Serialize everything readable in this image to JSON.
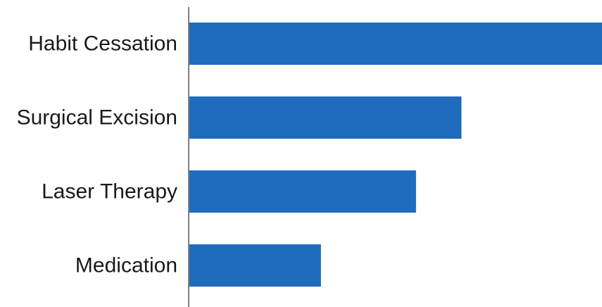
{
  "chart_data": {
    "type": "bar",
    "orientation": "horizontal",
    "categories": [
      "Habit Cessation",
      "Surgical Excision",
      "Laser Therapy",
      "Medication"
    ],
    "values": [
      100,
      66,
      55,
      32
    ],
    "xlim": [
      0,
      100
    ],
    "grid": false,
    "legend": "none",
    "bar_color": "#1f6bbd",
    "axis_color": "#555555"
  }
}
